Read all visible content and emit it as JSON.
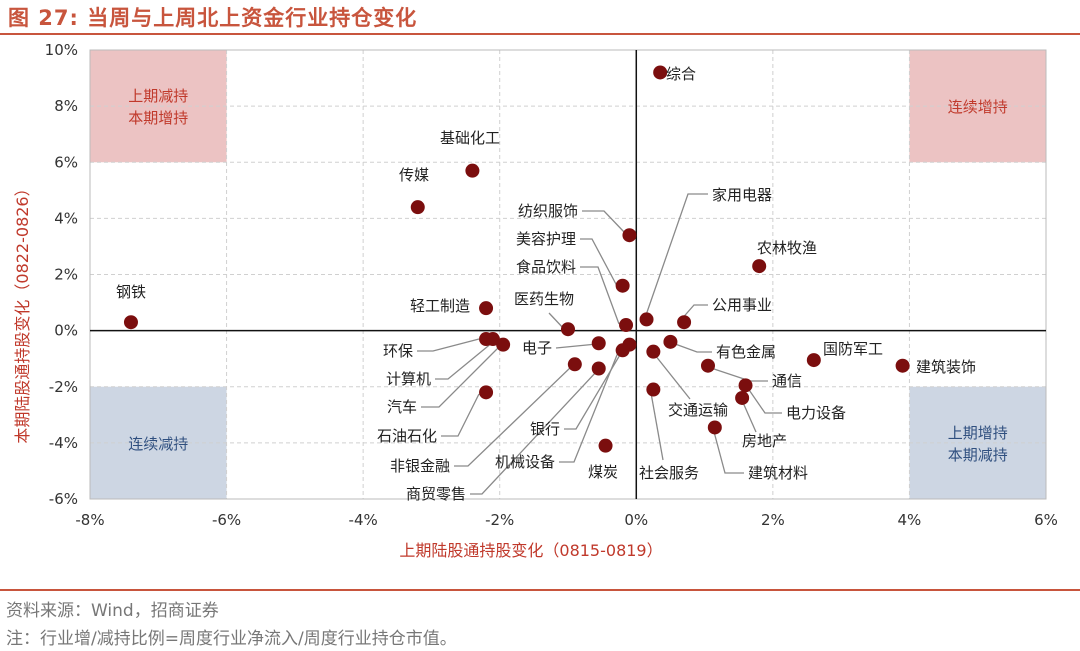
{
  "figure": {
    "title": "图 27:  当周与上周北上资金行业持仓变化",
    "source": "资料来源：Wind，招商证券",
    "note": "注：行业增/减持比例=周度行业净流入/周度行业持仓市值。"
  },
  "colors": {
    "accent": "#c8553d",
    "point": "#7b0e0e",
    "pink_quadrant": "#ecc3c3",
    "blue_quadrant": "#cdd6e3",
    "pink_text": "#c0392b",
    "blue_text": "#2f4f7f",
    "leader": "#8a8a8a"
  },
  "chart_data": {
    "type": "scatter",
    "xlabel": "上期陆股通持股变化（0815-0819）",
    "ylabel": "本期陆股通持股变化（0822-0826）",
    "xlim": [
      -8,
      6
    ],
    "ylim": [
      -6,
      10
    ],
    "xticks": [
      -8,
      -6,
      -4,
      -2,
      0,
      2,
      4,
      6
    ],
    "yticks": [
      -6,
      -4,
      -2,
      0,
      2,
      4,
      6,
      8,
      10
    ],
    "tick_format": "percent",
    "grid": "dashed",
    "quadrant_boxes": [
      {
        "label_lines": [
          "上期减持",
          "本期增持"
        ],
        "x": [
          -8,
          -6
        ],
        "y": [
          6,
          10
        ],
        "style": "pink"
      },
      {
        "label_lines": [
          "连续增持"
        ],
        "x": [
          4,
          6
        ],
        "y": [
          6,
          10
        ],
        "style": "pink"
      },
      {
        "label_lines": [
          "连续减持"
        ],
        "x": [
          -8,
          -6
        ],
        "y": [
          -6,
          -2
        ],
        "style": "blue"
      },
      {
        "label_lines": [
          "上期增持",
          "本期减持"
        ],
        "x": [
          4,
          6
        ],
        "y": [
          -6,
          -2
        ],
        "style": "blue"
      }
    ],
    "points": [
      {
        "label": "综合",
        "x": 0.35,
        "y": 9.2,
        "label_pos": "right"
      },
      {
        "label": "基础化工",
        "x": -2.4,
        "y": 5.7,
        "label_pos": "above-left"
      },
      {
        "label": "传媒",
        "x": -3.2,
        "y": 4.4,
        "label_pos": "above-left"
      },
      {
        "label": "钢铁",
        "x": -7.4,
        "y": 0.3,
        "label_pos": "above"
      },
      {
        "label": "纺织服饰",
        "x": -0.1,
        "y": 3.4,
        "label_pos": "leader"
      },
      {
        "label": "美容护理",
        "x": -0.2,
        "y": 1.6,
        "label_pos": "leader"
      },
      {
        "label": "食品饮料",
        "x": -0.15,
        "y": 0.2,
        "label_pos": "leader"
      },
      {
        "label": "家用电器",
        "x": 0.15,
        "y": 0.4,
        "label_pos": "leader"
      },
      {
        "label": "农林牧渔",
        "x": 1.8,
        "y": 2.3,
        "label_pos": "above-right"
      },
      {
        "label": "公用事业",
        "x": 0.7,
        "y": 0.3,
        "label_pos": "leader"
      },
      {
        "label": "轻工制造",
        "x": -2.2,
        "y": 0.8,
        "label_pos": "left"
      },
      {
        "label": "医药生物",
        "x": -1.0,
        "y": 0.05,
        "label_pos": "leader"
      },
      {
        "label": "环保",
        "x": -2.2,
        "y": -0.3,
        "label_pos": "leader"
      },
      {
        "label": "计算机",
        "x": -2.1,
        "y": -0.3,
        "label_pos": "leader"
      },
      {
        "label": "汽车",
        "x": -1.95,
        "y": -0.5,
        "label_pos": "leader"
      },
      {
        "label": "石油石化",
        "x": -2.2,
        "y": -2.2,
        "label_pos": "leader"
      },
      {
        "label": "电子",
        "x": -0.55,
        "y": -0.45,
        "label_pos": "leader"
      },
      {
        "label": "非银金融",
        "x": -0.9,
        "y": -1.2,
        "label_pos": "leader"
      },
      {
        "label": "商贸零售",
        "x": -0.55,
        "y": -1.35,
        "label_pos": "leader"
      },
      {
        "label": "银行",
        "x": -0.1,
        "y": -0.5,
        "label_pos": "leader"
      },
      {
        "label": "机械设备",
        "x": -0.2,
        "y": -0.7,
        "label_pos": "leader"
      },
      {
        "label": "煤炭",
        "x": -0.45,
        "y": -4.1,
        "label_pos": "below"
      },
      {
        "label": "有色金属",
        "x": 0.5,
        "y": -0.4,
        "label_pos": "leader"
      },
      {
        "label": "国防军工",
        "x": 2.6,
        "y": -1.05,
        "label_pos": "above-right"
      },
      {
        "label": "建筑装饰",
        "x": 3.9,
        "y": -1.25,
        "label_pos": "right"
      },
      {
        "label": "通信",
        "x": 1.05,
        "y": -1.25,
        "label_pos": "leader"
      },
      {
        "label": "交通运输",
        "x": 0.25,
        "y": -0.75,
        "label_pos": "leader"
      },
      {
        "label": "电力设备",
        "x": 1.6,
        "y": -1.95,
        "label_pos": "leader"
      },
      {
        "label": "房地产",
        "x": 1.55,
        "y": -2.4,
        "label_pos": "leader"
      },
      {
        "label": "社会服务",
        "x": 0.25,
        "y": -2.1,
        "label_pos": "leader"
      },
      {
        "label": "建筑材料",
        "x": 1.15,
        "y": -3.45,
        "label_pos": "leader"
      }
    ]
  }
}
